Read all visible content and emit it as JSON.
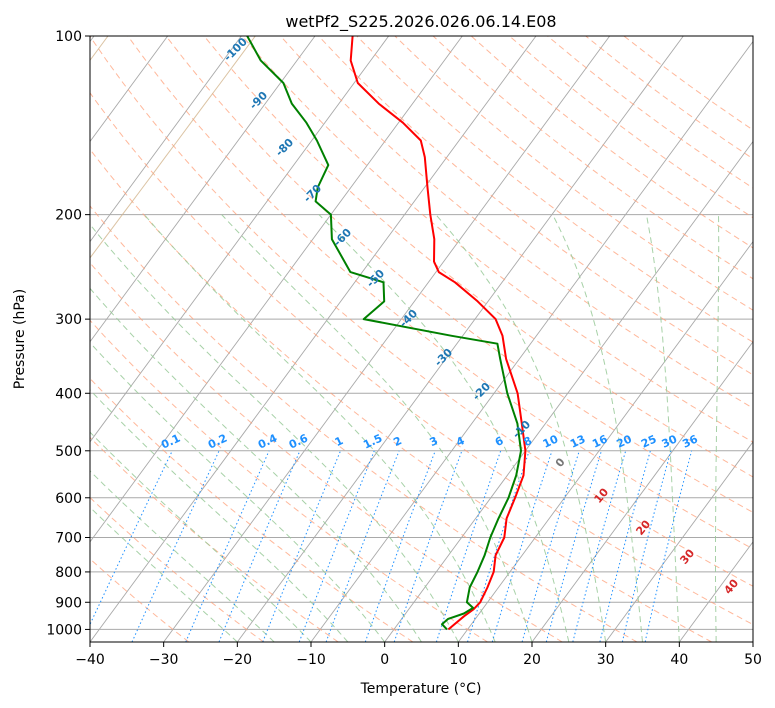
{
  "chart_data": {
    "type": "line",
    "subtype": "skew-t log-p diagram",
    "title": "wetPf2_S225.2026.026.06.14.E08",
    "xlabel": "Temperature (°C)",
    "ylabel": "Pressure (hPa)",
    "xlim": [
      -40,
      50
    ],
    "ylim": [
      1050,
      100
    ],
    "y_scale": "log",
    "x_ticks": [
      -40,
      -30,
      -20,
      -10,
      0,
      10,
      20,
      30,
      40,
      50
    ],
    "x_tick_labels": [
      "−40",
      "−30",
      "−20",
      "−10",
      "0",
      "10",
      "20",
      "30",
      "40",
      "50"
    ],
    "y_ticks": [
      1000,
      900,
      800,
      700,
      600,
      500,
      400,
      300,
      200,
      100
    ],
    "y_tick_labels": [
      "1000",
      "900",
      "800",
      "700",
      "600",
      "500",
      "400",
      "300",
      "200",
      "100"
    ],
    "grid": true,
    "series": [
      {
        "key": "temperature",
        "color": "#ff0000",
        "points": [
          [
            1000,
            7.4
          ],
          [
            950,
            8.2
          ],
          [
            925,
            8.8
          ],
          [
            900,
            9.0
          ],
          [
            850,
            8.5
          ],
          [
            800,
            7.8
          ],
          [
            750,
            6.4
          ],
          [
            700,
            5.8
          ],
          [
            650,
            4.2
          ],
          [
            600,
            3.3
          ],
          [
            550,
            2.2
          ],
          [
            500,
            0.0
          ],
          [
            450,
            -3.2
          ],
          [
            400,
            -6.8
          ],
          [
            350,
            -11.8
          ],
          [
            320,
            -14.6
          ],
          [
            300,
            -17.2
          ],
          [
            280,
            -21.4
          ],
          [
            260,
            -26.4
          ],
          [
            250,
            -29.6
          ],
          [
            240,
            -31.3
          ],
          [
            220,
            -33.5
          ],
          [
            200,
            -36.5
          ],
          [
            180,
            -39.6
          ],
          [
            160,
            -43.0
          ],
          [
            150,
            -45.2
          ],
          [
            140,
            -49.4
          ],
          [
            130,
            -54.6
          ],
          [
            120,
            -59.5
          ],
          [
            110,
            -62.7
          ],
          [
            100,
            -64.9
          ]
        ]
      },
      {
        "key": "dewpoint",
        "color": "#008000",
        "points": [
          [
            1000,
            7.2
          ],
          [
            980,
            6.0
          ],
          [
            960,
            6.3
          ],
          [
            940,
            7.9
          ],
          [
            920,
            8.6
          ],
          [
            900,
            7.2
          ],
          [
            850,
            6.1
          ],
          [
            800,
            5.6
          ],
          [
            750,
            4.9
          ],
          [
            700,
            3.9
          ],
          [
            650,
            3.1
          ],
          [
            600,
            2.4
          ],
          [
            550,
            1.2
          ],
          [
            500,
            -0.6
          ],
          [
            450,
            -3.8
          ],
          [
            400,
            -8.2
          ],
          [
            350,
            -12.6
          ],
          [
            330,
            -14.5
          ],
          [
            320,
            -21.5
          ],
          [
            300,
            -35.1
          ],
          [
            280,
            -34.1
          ],
          [
            260,
            -36.1
          ],
          [
            250,
            -41.6
          ],
          [
            220,
            -47.4
          ],
          [
            200,
            -50.0
          ],
          [
            190,
            -53.4
          ],
          [
            180,
            -54.5
          ],
          [
            165,
            -55.3
          ],
          [
            150,
            -59.3
          ],
          [
            140,
            -62.5
          ],
          [
            130,
            -66.4
          ],
          [
            120,
            -69.6
          ],
          [
            110,
            -74.9
          ],
          [
            100,
            -79.2
          ]
        ]
      }
    ],
    "dry_adiabat_labels": [
      "-100",
      "-90",
      "-80",
      "-70",
      "-60",
      "-50",
      "-40",
      "-30",
      "-20",
      "-10"
    ],
    "moist_adiabat_labels": [
      "0",
      "10",
      "20",
      "30",
      "40"
    ],
    "mixing_ratio_labels": [
      "0.1",
      "0.2",
      "0.4",
      "0.6",
      "1",
      "1.5",
      "2",
      "3",
      "4",
      "6",
      "8",
      "10",
      "13",
      "16",
      "20",
      "25",
      "30",
      "36"
    ],
    "colors": {
      "isotherm": "#a9a9a9",
      "isobar": "#a9a9a9",
      "dry_adiabat": "#ffa07a",
      "moist_adiabat": "#98c998",
      "mixing_ratio": "#1e90ff",
      "strat_adiabat": "#d2b48c"
    }
  }
}
